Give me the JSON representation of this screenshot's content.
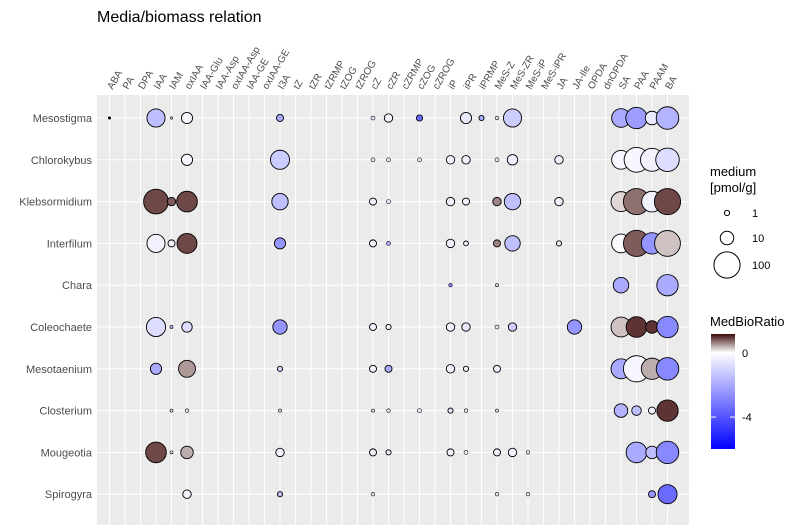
{
  "chart_data": {
    "type": "scatter",
    "title": "Media/biomass relation",
    "columns": [
      "ABA",
      "PA",
      "DPA",
      "IAA",
      "IAM",
      "oxIAA",
      "IAA-Glu",
      "IAA-Asp",
      "oxIAA-Asp",
      "IAA-GE",
      "oxIAA-GE",
      "I3A",
      "tZ",
      "tZR",
      "tZRMP",
      "tZOG",
      "tZROG",
      "cZ",
      "cZR",
      "cZRMP",
      "cZOG",
      "cZROG",
      "iP",
      "iPR",
      "iPRMP",
      "MeS-Z",
      "MeS-ZR",
      "MeS-iP",
      "MeS-iPR",
      "JA",
      "JA-Ile",
      "OPDA",
      "dnOPDA",
      "SA",
      "PAA",
      "PAAM",
      "BA"
    ],
    "rows": [
      "Mesostigma",
      "Chlorokybus",
      "Klebsormidium",
      "Interfilum",
      "Chara",
      "Coleochaete",
      "Mesotaenium",
      "Closterium",
      "Mougeotia",
      "Spirogyra"
    ],
    "points": [
      {
        "row": "Mesostigma",
        "col": "ABA",
        "medium": 0.2,
        "ratio": null
      },
      {
        "row": "Mesostigma",
        "col": "IAA",
        "medium": 25,
        "ratio": -1.5
      },
      {
        "row": "Mesostigma",
        "col": "IAM",
        "medium": 0.1,
        "ratio": -1
      },
      {
        "row": "Mesostigma",
        "col": "oxIAA",
        "medium": 6,
        "ratio": -0.2
      },
      {
        "row": "Mesostigma",
        "col": "I3A",
        "medium": 2,
        "ratio": -2
      },
      {
        "row": "Mesostigma",
        "col": "cZ",
        "medium": 0.5,
        "ratio": -0.5
      },
      {
        "row": "Mesostigma",
        "col": "cZR",
        "medium": 3,
        "ratio": -0.3
      },
      {
        "row": "Mesostigma",
        "col": "cZOG",
        "medium": 1.5,
        "ratio": -3.5
      },
      {
        "row": "Mesostigma",
        "col": "iPR",
        "medium": 6,
        "ratio": -0.5
      },
      {
        "row": "Mesostigma",
        "col": "iPRMP",
        "medium": 1,
        "ratio": -2
      },
      {
        "row": "Mesostigma",
        "col": "MeS-Z",
        "medium": 0.4,
        "ratio": -0.5
      },
      {
        "row": "Mesostigma",
        "col": "MeS-ZR",
        "medium": 25,
        "ratio": -1.2
      },
      {
        "row": "Mesostigma",
        "col": "SA",
        "medium": 28,
        "ratio": -2
      },
      {
        "row": "Mesostigma",
        "col": "PAA",
        "medium": 45,
        "ratio": -2.3
      },
      {
        "row": "Mesostigma",
        "col": "PAAM",
        "medium": 10,
        "ratio": -0.5
      },
      {
        "row": "Mesostigma",
        "col": "BA",
        "medium": 55,
        "ratio": -1.8
      },
      {
        "row": "Chlorokybus",
        "col": "oxIAA",
        "medium": 6,
        "ratio": -0.2
      },
      {
        "row": "Chlorokybus",
        "col": "I3A",
        "medium": 30,
        "ratio": -1.2
      },
      {
        "row": "Chlorokybus",
        "col": "cZ",
        "medium": 0.5,
        "ratio": -0.5
      },
      {
        "row": "Chlorokybus",
        "col": "cZR",
        "medium": 0.5,
        "ratio": -0.5
      },
      {
        "row": "Chlorokybus",
        "col": "cZOG",
        "medium": 0.5,
        "ratio": -0.5
      },
      {
        "row": "Chlorokybus",
        "col": "iP",
        "medium": 3,
        "ratio": -0.3
      },
      {
        "row": "Chlorokybus",
        "col": "iPR",
        "medium": 3,
        "ratio": -0.3
      },
      {
        "row": "Chlorokybus",
        "col": "MeS-Z",
        "medium": 0.5,
        "ratio": -0.5
      },
      {
        "row": "Chlorokybus",
        "col": "MeS-ZR",
        "medium": 5,
        "ratio": -0.3
      },
      {
        "row": "Chlorokybus",
        "col": "JA",
        "medium": 3,
        "ratio": -0.3
      },
      {
        "row": "Chlorokybus",
        "col": "SA",
        "medium": 28,
        "ratio": -0.2
      },
      {
        "row": "Chlorokybus",
        "col": "PAA",
        "medium": 80,
        "ratio": -0.2
      },
      {
        "row": "Chlorokybus",
        "col": "PAAM",
        "medium": 60,
        "ratio": -0.3
      },
      {
        "row": "Chlorokybus",
        "col": "BA",
        "medium": 65,
        "ratio": -0.8
      },
      {
        "row": "Klebsormidium",
        "col": "IAA",
        "medium": 80,
        "ratio": 0.9
      },
      {
        "row": "Klebsormidium",
        "col": "IAM",
        "medium": 3,
        "ratio": 0.8
      },
      {
        "row": "Klebsormidium",
        "col": "oxIAA",
        "medium": 40,
        "ratio": 0.9
      },
      {
        "row": "Klebsormidium",
        "col": "I3A",
        "medium": 18,
        "ratio": -1.5
      },
      {
        "row": "Klebsormidium",
        "col": "cZ",
        "medium": 2,
        "ratio": -0.3
      },
      {
        "row": "Klebsormidium",
        "col": "cZR",
        "medium": 0.5,
        "ratio": -0.5
      },
      {
        "row": "Klebsormidium",
        "col": "iP",
        "medium": 3,
        "ratio": -0.3
      },
      {
        "row": "Klebsormidium",
        "col": "iPR",
        "medium": 2,
        "ratio": -0.3
      },
      {
        "row": "Klebsormidium",
        "col": "MeS-Z",
        "medium": 3,
        "ratio": 0.6
      },
      {
        "row": "Klebsormidium",
        "col": "MeS-ZR",
        "medium": 18,
        "ratio": -1.5
      },
      {
        "row": "Klebsormidium",
        "col": "JA",
        "medium": 3,
        "ratio": -0.3
      },
      {
        "row": "Klebsormidium",
        "col": "SA",
        "medium": 35,
        "ratio": 0.2
      },
      {
        "row": "Klebsormidium",
        "col": "PAA",
        "medium": 100,
        "ratio": 0.7
      },
      {
        "row": "Klebsormidium",
        "col": "PAAM",
        "medium": 40,
        "ratio": -0.3
      },
      {
        "row": "Klebsormidium",
        "col": "BA",
        "medium": 100,
        "ratio": 0.9
      },
      {
        "row": "Interfilum",
        "col": "IAA",
        "medium": 25,
        "ratio": -0.3
      },
      {
        "row": "Interfilum",
        "col": "IAM",
        "medium": 2,
        "ratio": -0.3
      },
      {
        "row": "Interfilum",
        "col": "oxIAA",
        "medium": 35,
        "ratio": 0.9
      },
      {
        "row": "Interfilum",
        "col": "I3A",
        "medium": 6,
        "ratio": -2.5
      },
      {
        "row": "Interfilum",
        "col": "cZ",
        "medium": 2,
        "ratio": -0.3
      },
      {
        "row": "Interfilum",
        "col": "cZR",
        "medium": 0.5,
        "ratio": -2
      },
      {
        "row": "Interfilum",
        "col": "iP",
        "medium": 3,
        "ratio": -0.3
      },
      {
        "row": "Interfilum",
        "col": "iPR",
        "medium": 0.8,
        "ratio": -0.3
      },
      {
        "row": "Interfilum",
        "col": "MeS-Z",
        "medium": 2,
        "ratio": 0.6
      },
      {
        "row": "Interfilum",
        "col": "MeS-ZR",
        "medium": 15,
        "ratio": -1.5
      },
      {
        "row": "Interfilum",
        "col": "JA",
        "medium": 1,
        "ratio": -0.3
      },
      {
        "row": "Interfilum",
        "col": "SA",
        "medium": 28,
        "ratio": -0.1
      },
      {
        "row": "Interfilum",
        "col": "PAA",
        "medium": 100,
        "ratio": 0.8
      },
      {
        "row": "Interfilum",
        "col": "PAAM",
        "medium": 45,
        "ratio": -2.5
      },
      {
        "row": "Interfilum",
        "col": "BA",
        "medium": 95,
        "ratio": 0.3
      },
      {
        "row": "Chara",
        "col": "iP",
        "medium": 0.4,
        "ratio": -3
      },
      {
        "row": "Chara",
        "col": "MeS-Z",
        "medium": 0.3,
        "ratio": -0.5
      },
      {
        "row": "Chara",
        "col": "SA",
        "medium": 15,
        "ratio": -2
      },
      {
        "row": "Chara",
        "col": "BA",
        "medium": 45,
        "ratio": -2
      },
      {
        "row": "Coleochaete",
        "col": "IAA",
        "medium": 30,
        "ratio": -0.8
      },
      {
        "row": "Coleochaete",
        "col": "IAM",
        "medium": 0.3,
        "ratio": -1.5
      },
      {
        "row": "Coleochaete",
        "col": "oxIAA",
        "medium": 5,
        "ratio": -0.8
      },
      {
        "row": "Coleochaete",
        "col": "I3A",
        "medium": 12,
        "ratio": -2.5
      },
      {
        "row": "Coleochaete",
        "col": "cZ",
        "medium": 2,
        "ratio": -0.3
      },
      {
        "row": "Coleochaete",
        "col": "cZR",
        "medium": 1,
        "ratio": -0.3
      },
      {
        "row": "Coleochaete",
        "col": "iP",
        "medium": 3,
        "ratio": -0.3
      },
      {
        "row": "Coleochaete",
        "col": "iPR",
        "medium": 3,
        "ratio": -0.5
      },
      {
        "row": "Coleochaete",
        "col": "MeS-Z",
        "medium": 0.5,
        "ratio": -0.5
      },
      {
        "row": "Coleochaete",
        "col": "MeS-ZR",
        "medium": 3,
        "ratio": -1.2
      },
      {
        "row": "Coleochaete",
        "col": "JA-Ile",
        "medium": 12,
        "ratio": -2.5
      },
      {
        "row": "Coleochaete",
        "col": "SA",
        "medium": 35,
        "ratio": 0.3
      },
      {
        "row": "Coleochaete",
        "col": "PAA",
        "medium": 40,
        "ratio": 1
      },
      {
        "row": "Coleochaete",
        "col": "PAAM",
        "medium": 8,
        "ratio": 1
      },
      {
        "row": "Coleochaete",
        "col": "BA",
        "medium": 45,
        "ratio": -2.8
      },
      {
        "row": "Mesotaenium",
        "col": "IAA",
        "medium": 6,
        "ratio": -2
      },
      {
        "row": "Mesotaenium",
        "col": "oxIAA",
        "medium": 20,
        "ratio": 0.5
      },
      {
        "row": "Mesotaenium",
        "col": "I3A",
        "medium": 1,
        "ratio": -1
      },
      {
        "row": "Mesotaenium",
        "col": "cZ",
        "medium": 2,
        "ratio": -0.3
      },
      {
        "row": "Mesotaenium",
        "col": "cZR",
        "medium": 2,
        "ratio": -2
      },
      {
        "row": "Mesotaenium",
        "col": "iP",
        "medium": 3,
        "ratio": -0.3
      },
      {
        "row": "Mesotaenium",
        "col": "iPR",
        "medium": 1,
        "ratio": -0.3
      },
      {
        "row": "Mesotaenium",
        "col": "MeS-Z",
        "medium": 2,
        "ratio": -0.3
      },
      {
        "row": "Mesotaenium",
        "col": "SA",
        "medium": 35,
        "ratio": -2
      },
      {
        "row": "Mesotaenium",
        "col": "PAA",
        "medium": 100,
        "ratio": -0.2
      },
      {
        "row": "Mesotaenium",
        "col": "PAAM",
        "medium": 45,
        "ratio": 0.4
      },
      {
        "row": "Mesotaenium",
        "col": "BA",
        "medium": 55,
        "ratio": -2.8
      },
      {
        "row": "Closterium",
        "col": "IAM",
        "medium": 0.3,
        "ratio": -0.5
      },
      {
        "row": "Closterium",
        "col": "oxIAA",
        "medium": 0.4,
        "ratio": -0.5
      },
      {
        "row": "Closterium",
        "col": "I3A",
        "medium": 0.3,
        "ratio": -0.5
      },
      {
        "row": "Closterium",
        "col": "cZ",
        "medium": 0.3,
        "ratio": -0.5
      },
      {
        "row": "Closterium",
        "col": "cZR",
        "medium": 0.4,
        "ratio": -0.5
      },
      {
        "row": "Closterium",
        "col": "cZOG",
        "medium": 0.5,
        "ratio": -0.5
      },
      {
        "row": "Closterium",
        "col": "iP",
        "medium": 1,
        "ratio": -0.5
      },
      {
        "row": "Closterium",
        "col": "iPR",
        "medium": 0.4,
        "ratio": -0.5
      },
      {
        "row": "Closterium",
        "col": "MeS-Z",
        "medium": 0.3,
        "ratio": -0.5
      },
      {
        "row": "Closterium",
        "col": "SA",
        "medium": 10,
        "ratio": -1.8
      },
      {
        "row": "Closterium",
        "col": "PAA",
        "medium": 4,
        "ratio": -1.5
      },
      {
        "row": "Closterium",
        "col": "PAAM",
        "medium": 2,
        "ratio": -0.3
      },
      {
        "row": "Closterium",
        "col": "BA",
        "medium": 45,
        "ratio": 1
      },
      {
        "row": "Mougeotia",
        "col": "IAA",
        "medium": 40,
        "ratio": 0.9
      },
      {
        "row": "Mougeotia",
        "col": "IAM",
        "medium": 0.3,
        "ratio": -0.5
      },
      {
        "row": "Mougeotia",
        "col": "oxIAA",
        "medium": 8,
        "ratio": 0.4
      },
      {
        "row": "Mougeotia",
        "col": "I3A",
        "medium": 3,
        "ratio": -0.3
      },
      {
        "row": "Mougeotia",
        "col": "cZ",
        "medium": 2,
        "ratio": -0.3
      },
      {
        "row": "Mougeotia",
        "col": "cZR",
        "medium": 1,
        "ratio": -0.3
      },
      {
        "row": "Mougeotia",
        "col": "iP",
        "medium": 2,
        "ratio": -0.3
      },
      {
        "row": "Mougeotia",
        "col": "iPR",
        "medium": 0.5,
        "ratio": -0.3
      },
      {
        "row": "Mougeotia",
        "col": "MeS-Z",
        "medium": 2,
        "ratio": -0.3
      },
      {
        "row": "Mougeotia",
        "col": "MeS-ZR",
        "medium": 3,
        "ratio": -0.3
      },
      {
        "row": "Mougeotia",
        "col": "MeS-iP",
        "medium": 0.4,
        "ratio": -0.5
      },
      {
        "row": "Mougeotia",
        "col": "PAA",
        "medium": 40,
        "ratio": -2
      },
      {
        "row": "Mougeotia",
        "col": "PAAM",
        "medium": 8,
        "ratio": -1.5
      },
      {
        "row": "Mougeotia",
        "col": "BA",
        "medium": 55,
        "ratio": -2.8
      },
      {
        "row": "Spirogyra",
        "col": "oxIAA",
        "medium": 3,
        "ratio": -0.3
      },
      {
        "row": "Spirogyra",
        "col": "I3A",
        "medium": 1,
        "ratio": -1.5
      },
      {
        "row": "Spirogyra",
        "col": "cZ",
        "medium": 0.4,
        "ratio": -0.5
      },
      {
        "row": "Spirogyra",
        "col": "MeS-Z",
        "medium": 0.4,
        "ratio": -0.5
      },
      {
        "row": "Spirogyra",
        "col": "MeS-iP",
        "medium": 0.4,
        "ratio": -0.5
      },
      {
        "row": "Spirogyra",
        "col": "PAAM",
        "medium": 2,
        "ratio": -2.5
      },
      {
        "row": "Spirogyra",
        "col": "BA",
        "medium": 30,
        "ratio": -3.5
      }
    ],
    "size_legend": {
      "title_line1": "medium",
      "title_line2": "[pmol/g]",
      "entries": [
        {
          "label": "1",
          "value": 1
        },
        {
          "label": "10",
          "value": 10
        },
        {
          "label": "100",
          "value": 100
        }
      ]
    },
    "color_legend": {
      "title": "MedBioRatio",
      "ticks": [
        {
          "label": "0",
          "value": 0
        },
        {
          "label": "-4",
          "value": -4
        }
      ],
      "range": [
        -6,
        1.2
      ],
      "colors": {
        "low": "#0000ff",
        "mid": "#ffffff",
        "high": "#3d0a0a"
      }
    },
    "grid": true
  }
}
